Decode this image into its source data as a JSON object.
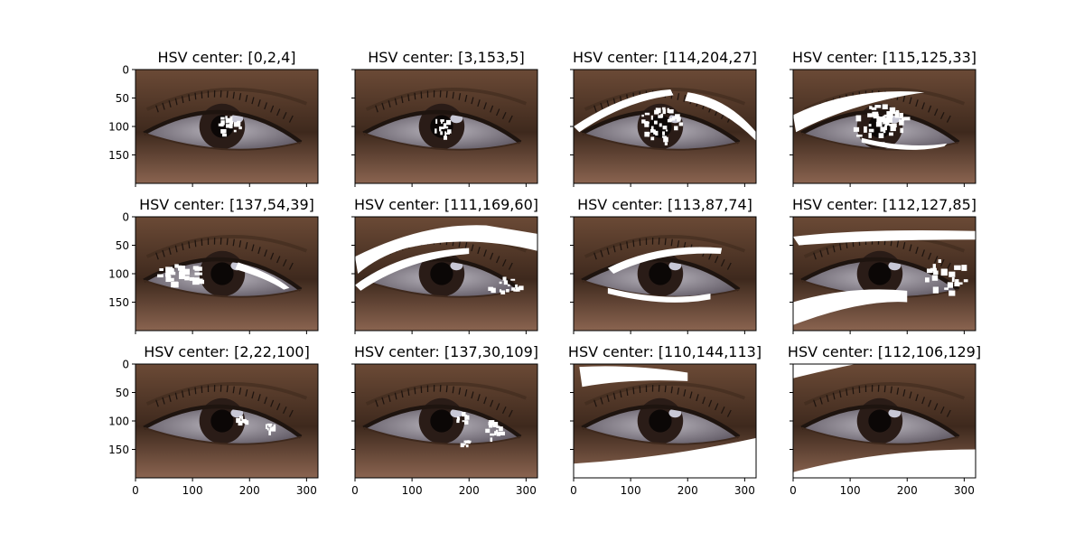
{
  "figure": {
    "panel_titles": [
      [
        "HSV center: [0,2,4]",
        "HSV center: [3,153,5]",
        "HSV center: [114,204,27]",
        "HSV center: [115,125,33]"
      ],
      [
        "HSV center: [137,54,39]",
        "HSV center: [111,169,60]",
        "HSV center: [113,87,74]",
        "HSV center: [112,127,85]"
      ],
      [
        "HSV center: [2,22,100]",
        "HSV center: [137,30,109]",
        "HSV center: [110,144,113]",
        "HSV center: [112,106,129]"
      ]
    ],
    "x_ticks": [
      "0",
      "100",
      "200",
      "300"
    ],
    "x_tick_values": [
      0,
      100,
      200,
      300
    ],
    "y_ticks": [
      "0",
      "50",
      "100",
      "150"
    ],
    "y_tick_values": [
      0,
      50,
      100,
      150
    ],
    "x_range": [
      0,
      320
    ],
    "y_range": [
      200,
      0
    ]
  },
  "colors": {
    "skin": "#6b4a36",
    "skin_light": "#8a6450",
    "skin_dark": "#3e291d",
    "sclera": "#b9b5bd",
    "iris": "#2a1c17",
    "pupil": "#0b0706",
    "highlight": "#c8c8d6",
    "lash": "#1e140f",
    "mask": "#ffffff",
    "axis": "#000000"
  }
}
